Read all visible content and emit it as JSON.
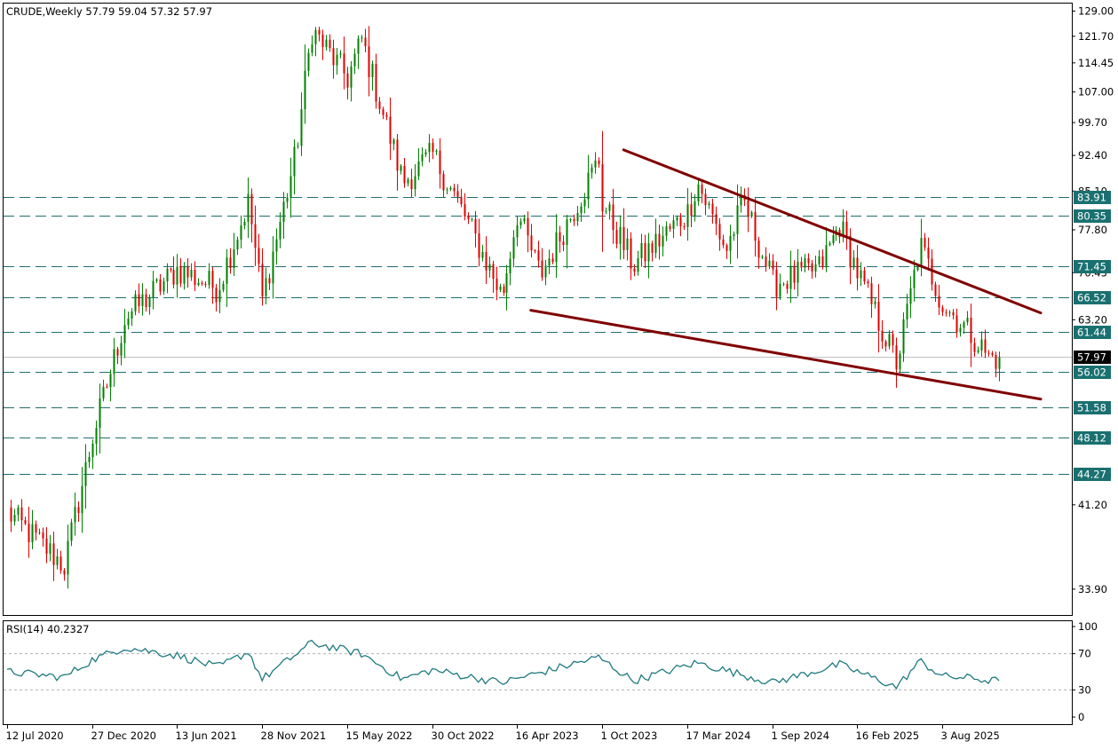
{
  "symbol_header": "CRUDE,Weekly  57.79 59.04 57.32 57.97",
  "rsi_header": "RSI(14) 40.2327",
  "current_price_label": "57.97",
  "colors": {
    "bull": "#008000",
    "bear": "#e00000",
    "trendline": "#800000",
    "level_line": "#1f6e6e",
    "level_label_bg": "#1a7070",
    "rsi_line": "#1e7a80",
    "price_line": "#c0c0c0",
    "current_label_bg": "#000000"
  },
  "chart_data": [
    {
      "type": "candlestick",
      "ylim": [
        32.0,
        131.0
      ],
      "y_ticks": [
        "129.00",
        "121.70",
        "114.45",
        "107.00",
        "99.70",
        "92.40",
        "85.10",
        "77.80",
        "70.45",
        "63.20",
        "41.20",
        "33.90"
      ],
      "x_ticks": [
        "12 Jul 2020",
        "27 Dec 2020",
        "13 Jun 2021",
        "28 Nov 2021",
        "15 May 2022",
        "30 Oct 2022",
        "16 Apr 2023",
        "1 Oct 2023",
        "17 Mar 2024",
        "1 Sep 2024",
        "16 Feb 2025",
        "3 Aug 2025"
      ],
      "ohlc_anchors": [
        {
          "date": "12 Jul 2020",
          "close": 40.5
        },
        {
          "date": "1 Nov 2020",
          "close": 35.8
        },
        {
          "date": "27 Dec 2020",
          "close": 48.2
        },
        {
          "date": "1 Mar 2021",
          "close": 63.5
        },
        {
          "date": "13 Jun 2021",
          "close": 71.0
        },
        {
          "date": "1 Sep 2021",
          "close": 68.0
        },
        {
          "date": "1 Nov 2021",
          "close": 83.0
        },
        {
          "date": "28 Nov 2021",
          "close": 66.2
        },
        {
          "date": "1 Feb 2022",
          "close": 92.3
        },
        {
          "date": "6 Mar 2022",
          "close": 123.7
        },
        {
          "date": "15 May 2022",
          "close": 110.5
        },
        {
          "date": "12 Jun 2022",
          "close": 120.7
        },
        {
          "date": "1 Sep 2022",
          "close": 86.9
        },
        {
          "date": "30 Oct 2022",
          "close": 92.6
        },
        {
          "date": "1 Jan 2023",
          "close": 80.3
        },
        {
          "date": "16 Mar 2023",
          "close": 66.7
        },
        {
          "date": "16 Apr 2023",
          "close": 80.8
        },
        {
          "date": "1 Jun 2023",
          "close": 70.1
        },
        {
          "date": "24 Sep 2023",
          "close": 91.5
        },
        {
          "date": "1 Oct 2023",
          "close": 82.8
        },
        {
          "date": "1 Dec 2023",
          "close": 71.7
        },
        {
          "date": "17 Mar 2024",
          "close": 81.0
        },
        {
          "date": "5 Apr 2024",
          "close": 86.9
        },
        {
          "date": "1 Jun 2024",
          "close": 74.2
        },
        {
          "date": "5 Jul 2024",
          "close": 83.2
        },
        {
          "date": "1 Sep 2024",
          "close": 68.7
        },
        {
          "date": "1 Dec 2024",
          "close": 71.2
        },
        {
          "date": "12 Jan 2025",
          "close": 78.8
        },
        {
          "date": "16 Feb 2025",
          "close": 70.6
        },
        {
          "date": "5 Apr 2025",
          "close": 61.9
        },
        {
          "date": "5 May 2025",
          "close": 57.1
        },
        {
          "date": "20 Jun 2025",
          "close": 75.1
        },
        {
          "date": "3 Aug 2025",
          "close": 65.5
        },
        {
          "date": "1 Oct 2025",
          "close": 61.0
        },
        {
          "date": "1 Nov 2025",
          "close": 57.97
        }
      ],
      "current_price": 57.97,
      "horizontal_levels": [
        83.91,
        80.35,
        71.45,
        66.52,
        61.44,
        56.02,
        51.58,
        48.12,
        44.27
      ],
      "level_labels": [
        "83.91",
        "80.35",
        "71.45",
        "66.52",
        "61.44",
        "56.02",
        "51.58",
        "48.12",
        "44.27"
      ],
      "trendlines": [
        {
          "from": {
            "date": "24 Sep 2023",
            "price": 93.6
          },
          "to": {
            "date": "23 Nov 2025",
            "price": 64.2
          }
        },
        {
          "from": {
            "date": "1 Apr 2023",
            "price": 64.6
          },
          "to": {
            "date": "23 Nov 2025",
            "price": 52.6
          }
        }
      ]
    },
    {
      "type": "line",
      "name": "RSI(14)",
      "ylim": [
        0,
        100
      ],
      "y_ticks": [
        "100",
        "70",
        "30",
        "0"
      ],
      "reference_levels": [
        70,
        30
      ],
      "anchors": [
        {
          "date": "12 Jul 2020",
          "value": 50
        },
        {
          "date": "1 Nov 2020",
          "value": 44
        },
        {
          "date": "27 Dec 2020",
          "value": 63
        },
        {
          "date": "1 Mar 2021",
          "value": 77
        },
        {
          "date": "13 Jun 2021",
          "value": 68
        },
        {
          "date": "1 Sep 2021",
          "value": 55
        },
        {
          "date": "1 Nov 2021",
          "value": 72
        },
        {
          "date": "28 Nov 2021",
          "value": 42
        },
        {
          "date": "6 Mar 2022",
          "value": 82
        },
        {
          "date": "12 Jun 2022",
          "value": 70
        },
        {
          "date": "1 Sep 2022",
          "value": 42
        },
        {
          "date": "30 Oct 2022",
          "value": 52
        },
        {
          "date": "16 Mar 2023",
          "value": 38
        },
        {
          "date": "24 Sep 2023",
          "value": 66
        },
        {
          "date": "1 Dec 2023",
          "value": 40
        },
        {
          "date": "5 Apr 2024",
          "value": 60
        },
        {
          "date": "1 Sep 2024",
          "value": 38
        },
        {
          "date": "12 Jan 2025",
          "value": 58
        },
        {
          "date": "5 May 2025",
          "value": 33
        },
        {
          "date": "20 Jun 2025",
          "value": 62
        },
        {
          "date": "3 Aug 2025",
          "value": 45
        },
        {
          "date": "1 Oct 2025",
          "value": 43
        },
        {
          "date": "1 Nov 2025",
          "value": 40.23
        }
      ],
      "last_value": 40.2327
    }
  ]
}
